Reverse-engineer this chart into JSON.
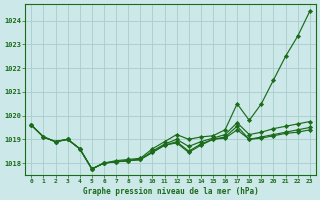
{
  "title": "Graphe pression niveau de la mer (hPa)",
  "bg_color": "#cce8e8",
  "grid_color": "#aacccc",
  "line_color": "#1a6b1a",
  "marker_color": "#1a6b1a",
  "xlim": [
    -0.5,
    23.5
  ],
  "ylim": [
    1017.5,
    1024.7
  ],
  "yticks": [
    1018,
    1019,
    1020,
    1021,
    1022,
    1023,
    1024
  ],
  "xticks": [
    0,
    1,
    2,
    3,
    4,
    5,
    6,
    7,
    8,
    9,
    10,
    11,
    12,
    13,
    14,
    15,
    16,
    17,
    18,
    19,
    20,
    21,
    22,
    23
  ],
  "series1": [
    1019.6,
    1019.1,
    1018.9,
    1019.0,
    1018.6,
    1017.75,
    1018.0,
    1018.05,
    1018.1,
    1018.15,
    1018.45,
    1018.75,
    1018.85,
    1018.45,
    1018.75,
    1019.0,
    1019.05,
    1019.4,
    1019.0,
    1019.05,
    1019.15,
    1019.25,
    1019.3,
    1019.4
  ],
  "series2": [
    1019.6,
    1019.1,
    1018.9,
    1019.0,
    1018.6,
    1017.75,
    1018.0,
    1018.05,
    1018.1,
    1018.15,
    1018.45,
    1018.75,
    1018.9,
    1018.5,
    1018.8,
    1019.0,
    1019.1,
    1019.55,
    1019.0,
    1019.1,
    1019.2,
    1019.3,
    1019.4,
    1019.5
  ],
  "series3": [
    1019.6,
    1019.1,
    1018.9,
    1019.0,
    1018.6,
    1017.75,
    1018.0,
    1018.05,
    1018.1,
    1018.15,
    1018.5,
    1018.8,
    1019.0,
    1018.7,
    1018.9,
    1019.05,
    1019.2,
    1019.7,
    1019.2,
    1019.3,
    1019.45,
    1019.55,
    1019.65,
    1019.75
  ],
  "series4": [
    1019.6,
    1019.1,
    1018.9,
    1019.0,
    1018.6,
    1017.75,
    1018.0,
    1018.1,
    1018.15,
    1018.2,
    1018.6,
    1018.9,
    1019.2,
    1019.0,
    1019.1,
    1019.15,
    1019.4,
    1020.5,
    1019.8,
    1020.5,
    1021.5,
    1022.5,
    1023.35,
    1024.4
  ]
}
